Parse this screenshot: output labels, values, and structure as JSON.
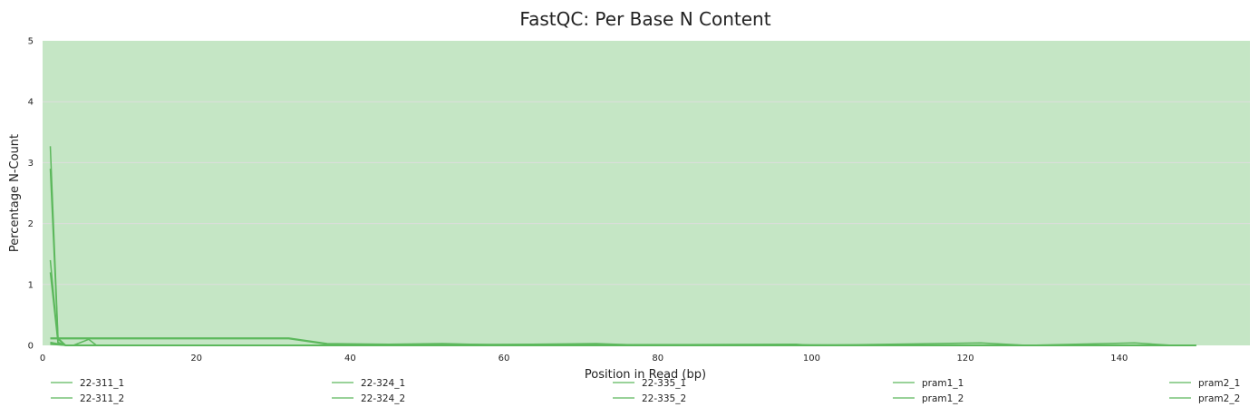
{
  "chart_data": {
    "type": "line",
    "title": "FastQC: Per Base N Content",
    "xlabel": "Position in Read (bp)",
    "ylabel": "Percentage N-Count",
    "xlim": [
      0,
      157
    ],
    "ylim": [
      0,
      5
    ],
    "x_ticks": [
      0,
      20,
      40,
      60,
      80,
      100,
      120,
      140
    ],
    "y_ticks": [
      0,
      1,
      2,
      3,
      4,
      5
    ],
    "background_band": {
      "from": 0,
      "to": 5,
      "status": "pass"
    },
    "grid": true,
    "legend_position": "bottom",
    "series": [
      {
        "name": "22-311_1",
        "points": [
          [
            1,
            3.27
          ],
          [
            2,
            0.12
          ],
          [
            3,
            0.0
          ],
          [
            150,
            0.0
          ]
        ]
      },
      {
        "name": "22-311_2",
        "points": [
          [
            1,
            2.9
          ],
          [
            2,
            0.1
          ],
          [
            3,
            0.0
          ],
          [
            150,
            0.0
          ]
        ]
      },
      {
        "name": "22-324_1",
        "points": [
          [
            1,
            1.4
          ],
          [
            2,
            0.05
          ],
          [
            3,
            0.0
          ],
          [
            150,
            0.0
          ]
        ]
      },
      {
        "name": "22-324_2",
        "points": [
          [
            1,
            1.2
          ],
          [
            2,
            0.04
          ],
          [
            3,
            0.0
          ],
          [
            4,
            0.0
          ],
          [
            6,
            0.1
          ],
          [
            7,
            0.0
          ],
          [
            150,
            0.0
          ]
        ]
      },
      {
        "name": "22-335_1",
        "points": [
          [
            1,
            0.12
          ],
          [
            10,
            0.12
          ],
          [
            20,
            0.12
          ],
          [
            32,
            0.12
          ],
          [
            37,
            0.03
          ],
          [
            45,
            0.02
          ],
          [
            52,
            0.03
          ],
          [
            58,
            0.01
          ],
          [
            72,
            0.03
          ],
          [
            76,
            0.01
          ],
          [
            98,
            0.02
          ],
          [
            100,
            0.0
          ],
          [
            122,
            0.04
          ],
          [
            128,
            0.0
          ],
          [
            142,
            0.04
          ],
          [
            147,
            0.0
          ],
          [
            150,
            0.0
          ]
        ]
      },
      {
        "name": "22-335_2",
        "points": [
          [
            1,
            0.11
          ],
          [
            32,
            0.11
          ],
          [
            37,
            0.02
          ],
          [
            150,
            0.0
          ]
        ]
      },
      {
        "name": "pram1_1",
        "points": [
          [
            1,
            0.05
          ],
          [
            3,
            0.0
          ],
          [
            150,
            0.0
          ]
        ]
      },
      {
        "name": "pram1_2",
        "points": [
          [
            1,
            0.04
          ],
          [
            3,
            0.0
          ],
          [
            150,
            0.0
          ]
        ]
      },
      {
        "name": "pram2_1",
        "points": [
          [
            1,
            0.03
          ],
          [
            3,
            0.0
          ],
          [
            150,
            0.0
          ]
        ]
      },
      {
        "name": "pram2_2",
        "points": [
          [
            1,
            0.02
          ],
          [
            3,
            0.0
          ],
          [
            150,
            0.0
          ]
        ]
      }
    ]
  },
  "colors": {
    "band": "#c5e6c5",
    "line": "#5cb85c",
    "grid": "#dddddd"
  }
}
